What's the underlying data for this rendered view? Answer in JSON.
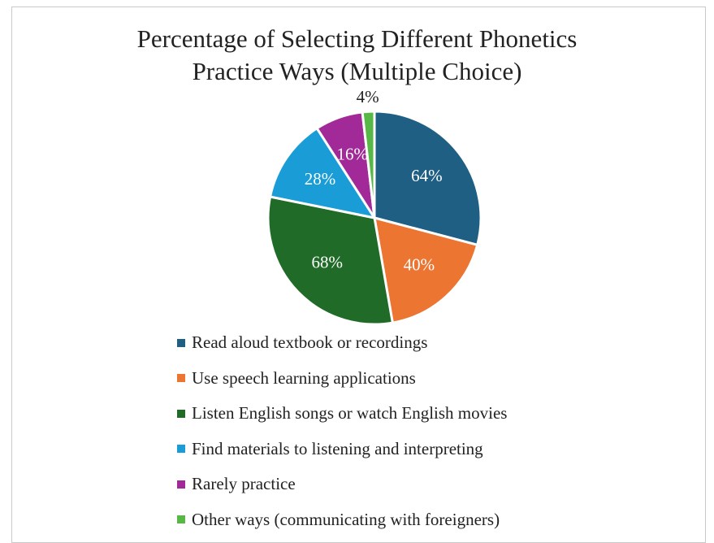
{
  "chart_data": {
    "type": "pie",
    "title_lines": [
      "Percentage of Selecting Different Phonetics",
      "Practice Ways (Multiple Choice)"
    ],
    "categories": [
      "Read aloud textbook or recordings",
      "Use speech learning applications",
      "Listen English songs or watch English movies",
      "Find materials to listening and interpreting",
      "Rarely practice",
      "Other ways (communicating with foreigners)"
    ],
    "values": [
      64,
      40,
      68,
      28,
      16,
      4
    ],
    "data_labels": [
      "64%",
      "40%",
      "68%",
      "28%",
      "16%",
      "4%"
    ],
    "colors": [
      "#1f5f84",
      "#ec7532",
      "#1f6b27",
      "#1a9dd6",
      "#a12a98",
      "#58b847"
    ],
    "legend_position": "bottom"
  }
}
